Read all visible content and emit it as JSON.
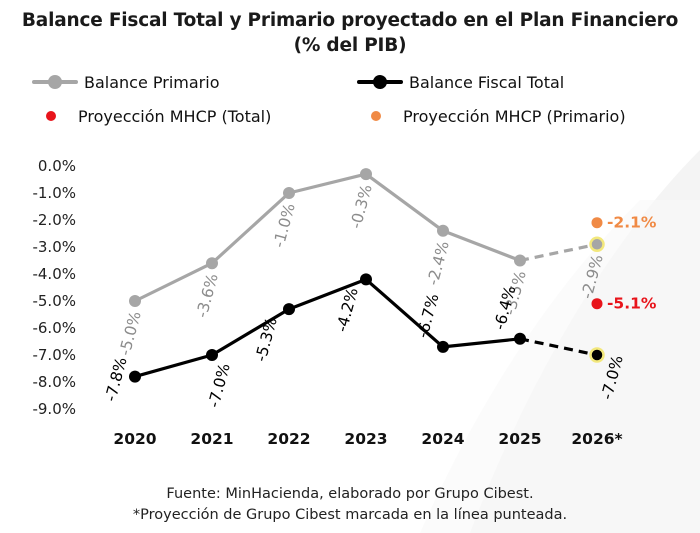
{
  "chart_data": {
    "type": "line",
    "title": "Balance Fiscal Total y Primario proyectado en el Plan Financiero",
    "subtitle": "(% del PIB)",
    "categories": [
      "2020",
      "2021",
      "2022",
      "2023",
      "2024",
      "2025",
      "2026*"
    ],
    "ylim": [
      -9.0,
      0.0
    ],
    "yticks": [
      "0.0%",
      "-1.0%",
      "-2.0%",
      "-3.0%",
      "-4.0%",
      "-5.0%",
      "-6.0%",
      "-7.0%",
      "-8.0%",
      "-9.0%"
    ],
    "grid": false,
    "legend_position": "top",
    "series": [
      {
        "name": "Balance Primario",
        "color": "#a6a6a6",
        "values": [
          -5.0,
          -3.6,
          -1.0,
          -0.3,
          -2.4,
          -3.5,
          -2.9
        ],
        "labels": [
          "-5.0%",
          "-3.6%",
          "-1.0%",
          "-0.3%",
          "-2.4%",
          "-3.5%",
          "-2.9%"
        ],
        "projected_from_index": 5
      },
      {
        "name": "Balance Fiscal Total",
        "color": "#000000",
        "values": [
          -7.8,
          -7.0,
          -5.3,
          -4.2,
          -6.7,
          -6.4,
          -7.0
        ],
        "labels": [
          "-7.8%",
          "-7.0%",
          "-5.3%",
          "-4.2%",
          "-6.7%",
          "-6.4%",
          "-7.0%"
        ],
        "projected_from_index": 5
      }
    ],
    "points": [
      {
        "name": "Proyección MHCP (Total)",
        "color": "#e8141b",
        "x": "2026*",
        "y": -5.1,
        "label": "-5.1%"
      },
      {
        "name": "Proyección MHCP (Primario)",
        "color": "#f08a45",
        "x": "2026*",
        "y": -2.1,
        "label": "-2.1%"
      }
    ],
    "highlight_color": "#f3e87c"
  },
  "footer": {
    "source": "Fuente: MinHacienda, elaborado por Grupo Cibest.",
    "note": "*Proyección de Grupo Cibest marcada en la línea punteada."
  }
}
